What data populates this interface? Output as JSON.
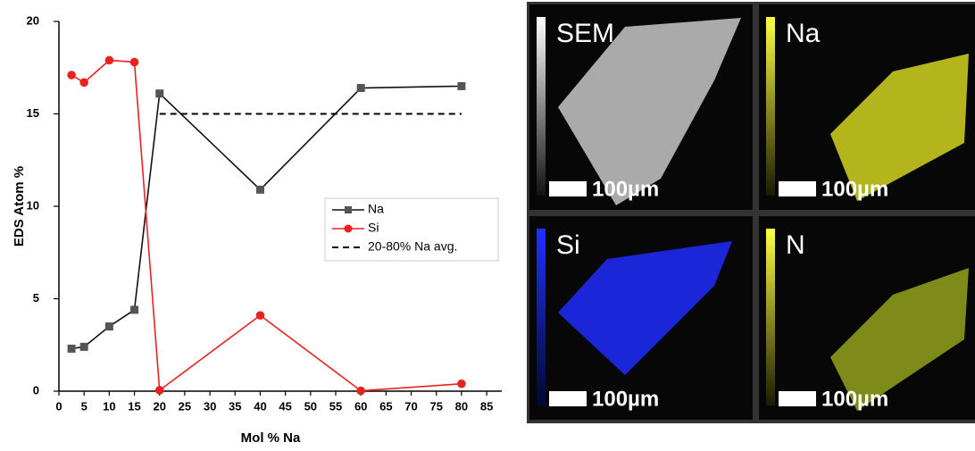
{
  "chart_data": {
    "type": "line",
    "x_label": "Mol % Na",
    "y_label": "EDS Atom %",
    "xlim": [
      0,
      88
    ],
    "ylim": [
      0,
      20
    ],
    "xticks": [
      0,
      5,
      10,
      15,
      20,
      25,
      30,
      35,
      40,
      45,
      50,
      55,
      60,
      65,
      70,
      75,
      80,
      85
    ],
    "yticks": [
      0,
      5,
      10,
      15,
      20
    ],
    "legend": "right",
    "series": [
      {
        "name": "Na",
        "color": "#111111",
        "marker_color": "#555555",
        "marker": "square",
        "dash": false,
        "x": [
          2.5,
          5,
          10,
          15,
          20,
          40,
          60,
          80
        ],
        "values": [
          2.3,
          2.4,
          3.5,
          4.4,
          16.1,
          10.9,
          16.4,
          16.5
        ]
      },
      {
        "name": "Si",
        "color": "#e8231f",
        "marker_color": "#e8231f",
        "marker": "circle",
        "dash": false,
        "x": [
          2.5,
          5,
          10,
          15,
          20,
          40,
          60,
          80
        ],
        "values": [
          17.1,
          16.7,
          17.9,
          17.8,
          0.05,
          4.1,
          0.02,
          0.4
        ]
      },
      {
        "name": "20-80% Na avg.",
        "color": "#000000",
        "marker": "none",
        "dash": true,
        "x": [
          20,
          80
        ],
        "values": [
          15,
          15
        ]
      }
    ]
  },
  "image_panels": [
    {
      "label": "SEM",
      "scale": "100µm"
    },
    {
      "label": "Na",
      "scale": "100µm"
    },
    {
      "label": "Si",
      "scale": "100µm"
    },
    {
      "label": "N",
      "scale": "100µm"
    }
  ]
}
